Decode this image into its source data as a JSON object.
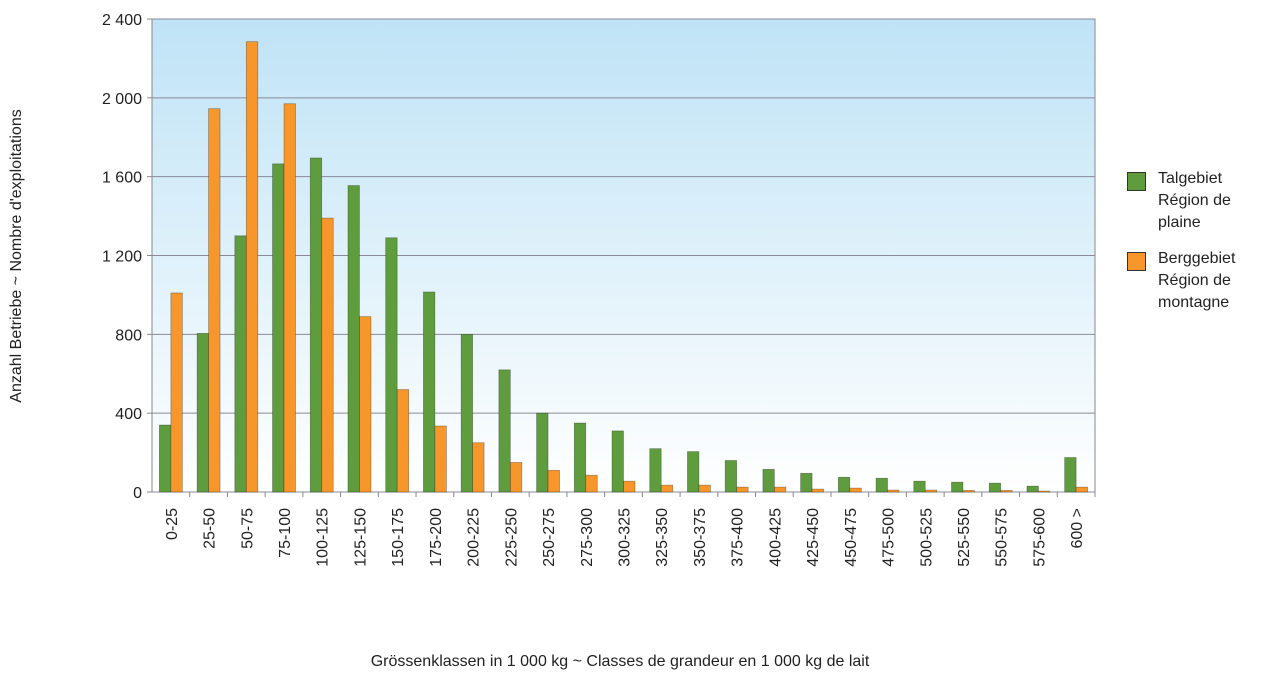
{
  "chart_data": {
    "type": "bar",
    "categories": [
      "0-25",
      "25-50",
      "50-75",
      "75-100",
      "100-125",
      "125-150",
      "150-175",
      "175-200",
      "200-225",
      "225-250",
      "250-275",
      "275-300",
      "300-325",
      "325-350",
      "350-375",
      "375-400",
      "400-425",
      "425-450",
      "450-475",
      "475-500",
      "500-525",
      "525-550",
      "550-575",
      "575-600",
      "600 >"
    ],
    "series": [
      {
        "name": "Talgebiet Région de plaine",
        "color": "#5f9c3e",
        "values": [
          340,
          805,
          1300,
          1665,
          1695,
          1555,
          1290,
          1015,
          800,
          620,
          400,
          350,
          310,
          220,
          205,
          160,
          115,
          95,
          75,
          70,
          55,
          50,
          45,
          30,
          175
        ]
      },
      {
        "name": "Berggebiet Région de montagne",
        "color": "#f7962a",
        "values": [
          1010,
          1945,
          2285,
          1970,
          1390,
          890,
          520,
          335,
          250,
          150,
          110,
          85,
          55,
          35,
          35,
          25,
          25,
          15,
          20,
          10,
          10,
          8,
          8,
          5,
          25
        ]
      }
    ],
    "ylim": [
      0,
      2400
    ],
    "yticks": [
      0,
      400,
      800,
      {
        "value": 1200,
        "label": "1 200"
      },
      {
        "value": 1600,
        "label": "1 600"
      },
      {
        "value": 2000,
        "label": "2 000"
      },
      {
        "value": 2400,
        "label": "2 400"
      }
    ],
    "grid": true,
    "legend": "right",
    "ylabel": "Anzahl Betriebe ~ Nombre d'exploitations",
    "xlabel": "Grössenklassen in 1 000 kg ~ Classes de grandeur en 1 000 kg de lait"
  }
}
